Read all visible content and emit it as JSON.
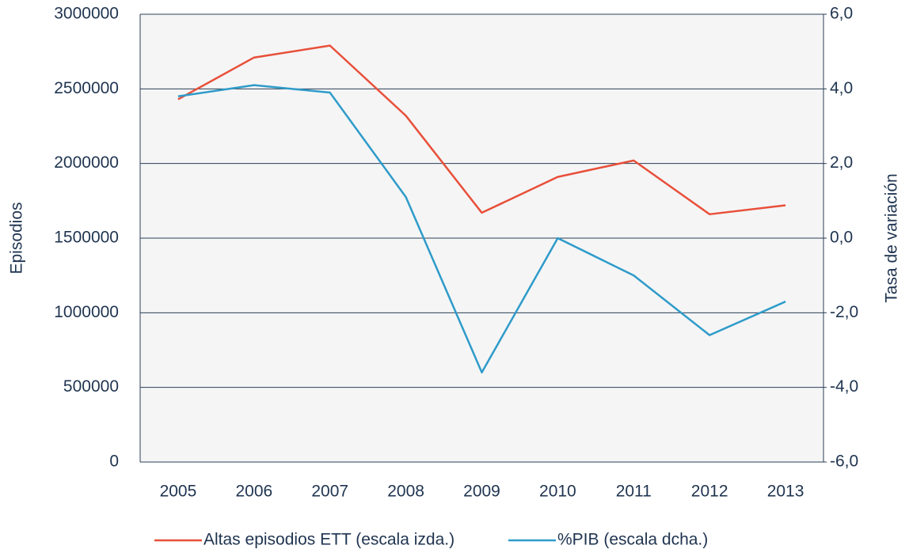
{
  "chart_data": {
    "type": "line",
    "categories": [
      "2005",
      "2006",
      "2007",
      "2008",
      "2009",
      "2010",
      "2011",
      "2012",
      "2013"
    ],
    "series": [
      {
        "name": "Altas episodios ETT (escala izda.)",
        "color": "#e8503a",
        "values": [
          2430000,
          2710000,
          2790000,
          2320000,
          1670000,
          1910000,
          2020000,
          1660000,
          1720000
        ]
      },
      {
        "name": "%PIB (escala dcha.)",
        "color": "#2e9bc9",
        "axis": "y2",
        "values": [
          3.8,
          4.1,
          3.9,
          1.1,
          -3.6,
          0.0,
          -1.0,
          -2.6,
          -1.7
        ]
      }
    ],
    "ylabel": "Episodios",
    "y2label": "Tasa de variación",
    "ylim": [
      0,
      3000000
    ],
    "yticks": [
      0,
      500000,
      1000000,
      1500000,
      2000000,
      2500000,
      3000000
    ],
    "y2lim": [
      -6,
      6
    ],
    "y2ticks": [
      {
        "value": -6,
        "label": "-6,0"
      },
      {
        "value": -4,
        "label": "-4,0"
      },
      {
        "value": -2,
        "label": "-2,0"
      },
      {
        "value": 0,
        "label": "0,0"
      },
      {
        "value": 2,
        "label": "2,0"
      },
      {
        "value": 4,
        "label": "4,0"
      },
      {
        "value": 6,
        "label": "6,0"
      }
    ],
    "grid": true,
    "legend": "bottom"
  }
}
